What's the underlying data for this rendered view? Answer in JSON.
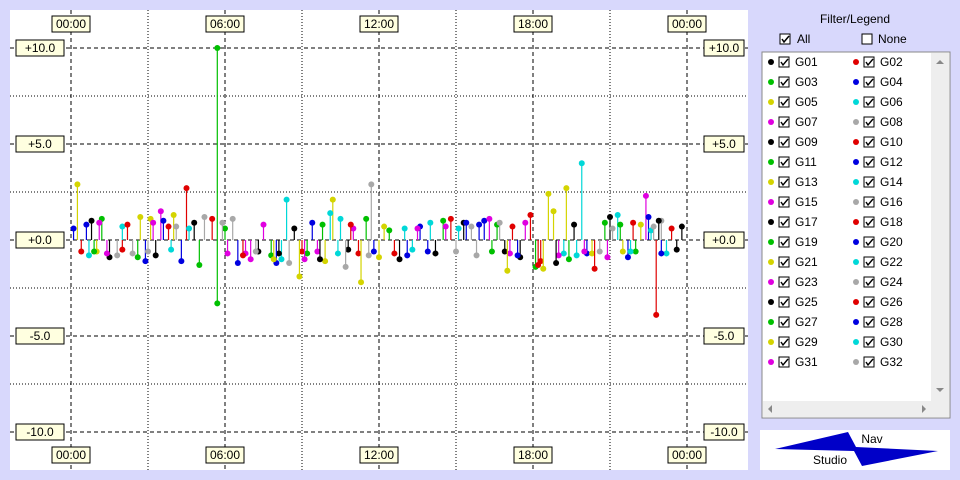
{
  "chart_data": {
    "type": "stem",
    "xlim": [
      0,
      24
    ],
    "ylim": [
      -10,
      10
    ],
    "grid": true,
    "xticks": [
      {
        "value": 0,
        "label": "00:00"
      },
      {
        "value": 6,
        "label": "06:00"
      },
      {
        "value": 12,
        "label": "12:00"
      },
      {
        "value": 18,
        "label": "18:00"
      },
      {
        "value": 24,
        "label": "00:00"
      }
    ],
    "xminorticks": [
      3,
      9,
      15,
      21
    ],
    "yticks": [
      {
        "value": 10,
        "label": "+10.0"
      },
      {
        "value": 5,
        "label": "+5.0"
      },
      {
        "value": 0,
        "label": "+0.0"
      },
      {
        "value": -5,
        "label": "-5.0"
      },
      {
        "value": -10,
        "label": "-10.0"
      }
    ],
    "yminorticks": [
      7.5,
      2.5,
      -2.5,
      -7.5
    ],
    "series": [
      {
        "name": "G01",
        "color": "#000000",
        "x": [
          0.8,
          7.3,
          10.8,
          17.5,
          21.0
        ],
        "values": [
          1.0,
          -0.6,
          -0.5,
          -0.9,
          1.2
        ]
      },
      {
        "name": "G02",
        "color": "#e00000",
        "x": [
          4.5,
          11.2,
          17.9,
          22.8,
          2.0
        ],
        "values": [
          2.7,
          -0.7,
          1.3,
          -3.9,
          -0.5
        ]
      },
      {
        "name": "G03",
        "color": "#00c000",
        "x": [
          5.7,
          5.7,
          9.8,
          16.6,
          22.0
        ],
        "values": [
          10.0,
          -3.3,
          0.8,
          0.8,
          -0.6
        ]
      },
      {
        "name": "G04",
        "color": "#0000e0",
        "x": [
          0.6,
          6.5,
          13.6,
          16.1,
          20.1
        ],
        "values": [
          0.8,
          -1.2,
          0.7,
          1.0,
          -0.7
        ]
      },
      {
        "name": "G05",
        "color": "#d4d400",
        "x": [
          0.25,
          3.1,
          10.2,
          18.6,
          21.5
        ],
        "values": [
          2.9,
          1.1,
          2.1,
          2.4,
          -0.6
        ]
      },
      {
        "name": "G06",
        "color": "#00d8d8",
        "x": [
          8.2,
          10.1,
          13.0,
          19.9,
          23.2
        ],
        "values": [
          -1.0,
          1.4,
          0.6,
          4.0,
          -0.7
        ]
      },
      {
        "name": "G07",
        "color": "#e000e0",
        "x": [
          3.2,
          7.0,
          9.6,
          17.1,
          22.4
        ],
        "values": [
          0.9,
          -1.0,
          -0.6,
          -0.7,
          2.3
        ]
      },
      {
        "name": "G08",
        "color": "#a8a8a8",
        "x": [
          2.4,
          6.3,
          11.7,
          15.0,
          23.0
        ],
        "values": [
          -0.7,
          1.1,
          2.9,
          -0.6,
          1.0
        ]
      },
      {
        "name": "G09",
        "color": "#000000",
        "x": [
          1.5,
          8.7,
          14.2,
          19.6,
          23.6
        ],
        "values": [
          -0.9,
          0.6,
          -0.7,
          0.8,
          -0.5
        ]
      },
      {
        "name": "G10",
        "color": "#e00000",
        "x": [
          3.8,
          9.0,
          14.8,
          18.3,
          21.9
        ],
        "values": [
          0.7,
          -0.6,
          1.1,
          -1.1,
          0.9
        ]
      },
      {
        "name": "G11",
        "color": "#00c000",
        "x": [
          1.2,
          7.8,
          12.4,
          18.1,
          20.8
        ],
        "values": [
          1.1,
          -0.8,
          0.5,
          -1.4,
          0.9
        ]
      },
      {
        "name": "G12",
        "color": "#0000e0",
        "x": [
          2.9,
          9.4,
          13.9,
          17.4,
          22.5
        ],
        "values": [
          -1.1,
          0.9,
          -0.6,
          -0.8,
          1.2
        ]
      },
      {
        "name": "G13",
        "color": "#d4d400",
        "x": [
          4.0,
          8.9,
          11.3,
          18.8,
          20.3
        ],
        "values": [
          1.3,
          -1.9,
          -2.2,
          1.5,
          -0.7
        ]
      },
      {
        "name": "G14",
        "color": "#00d8d8",
        "x": [
          2.0,
          10.5,
          13.3,
          19.2,
          21.3
        ],
        "values": [
          0.7,
          1.1,
          -0.5,
          -0.7,
          1.3
        ]
      },
      {
        "name": "G15",
        "color": "#e000e0",
        "x": [
          3.5,
          6.8,
          11.0,
          17.7,
          19.0
        ],
        "values": [
          1.5,
          -0.7,
          0.6,
          0.9,
          -0.8
        ]
      },
      {
        "name": "G16",
        "color": "#a8a8a8",
        "x": [
          1.8,
          5.2,
          8.5,
          15.6,
          20.6
        ],
        "values": [
          -0.8,
          1.2,
          -1.2,
          0.7,
          -0.6
        ]
      },
      {
        "name": "G17",
        "color": "#000000",
        "x": [
          4.8,
          8.1,
          12.8,
          16.9,
          22.9
        ],
        "values": [
          0.9,
          -0.7,
          -1.0,
          -0.6,
          1.0
        ]
      },
      {
        "name": "G18",
        "color": "#e00000",
        "x": [
          0.4,
          5.5,
          10.9,
          18.2,
          23.4
        ],
        "values": [
          -0.6,
          1.1,
          0.8,
          -1.3,
          0.6
        ]
      },
      {
        "name": "G19",
        "color": "#00c000",
        "x": [
          2.6,
          6.0,
          9.2,
          14.5,
          19.4
        ],
        "values": [
          -0.9,
          0.6,
          -0.7,
          1.0,
          -1.0
        ]
      },
      {
        "name": "G20",
        "color": "#0000e0",
        "x": [
          0.1,
          4.3,
          11.8,
          15.9,
          21.7
        ],
        "values": [
          0.6,
          -1.1,
          -0.6,
          0.8,
          -0.9
        ]
      },
      {
        "name": "G21",
        "color": "#d4d400",
        "x": [
          1.0,
          9.9,
          12.2,
          18.4,
          22.2
        ],
        "values": [
          -0.6,
          -1.1,
          0.7,
          -1.5,
          0.8
        ]
      },
      {
        "name": "G22",
        "color": "#00d8d8",
        "x": [
          3.9,
          8.4,
          14.0,
          19.7,
          22.6
        ],
        "values": [
          -0.5,
          2.1,
          0.9,
          -0.8,
          0.5
        ]
      },
      {
        "name": "G23",
        "color": "#e000e0",
        "x": [
          1.4,
          7.5,
          13.5,
          16.3,
          20.0
        ],
        "values": [
          -0.7,
          0.8,
          0.6,
          1.1,
          -0.6
        ]
      },
      {
        "name": "G24",
        "color": "#a8a8a8",
        "x": [
          4.1,
          7.2,
          10.7,
          16.7,
          21.1
        ],
        "values": [
          0.7,
          -0.6,
          -1.4,
          0.9,
          0.6
        ]
      },
      {
        "name": "G25",
        "color": "#000000",
        "x": [
          3.3,
          9.7,
          15.3,
          18.9,
          23.8
        ],
        "values": [
          -0.8,
          -1.0,
          0.9,
          -1.2,
          0.7
        ]
      },
      {
        "name": "G26",
        "color": "#e00000",
        "x": [
          2.2,
          6.7,
          12.6,
          17.2,
          20.4
        ],
        "values": [
          0.8,
          -0.8,
          -0.7,
          0.7,
          -1.5
        ]
      },
      {
        "name": "G27",
        "color": "#00c000",
        "x": [
          0.9,
          5.0,
          11.5,
          16.4,
          21.4
        ],
        "values": [
          -0.6,
          -1.3,
          1.1,
          -0.6,
          0.8
        ]
      },
      {
        "name": "G28",
        "color": "#0000e0",
        "x": [
          3.6,
          8.0,
          13.1,
          15.4,
          23.0
        ],
        "values": [
          1.0,
          -1.2,
          -0.8,
          0.9,
          -0.7
        ]
      },
      {
        "name": "G29",
        "color": "#d4d400",
        "x": [
          2.7,
          7.9,
          12.0,
          17.0,
          19.3
        ],
        "values": [
          1.2,
          -1.0,
          -0.9,
          -1.6,
          2.7
        ]
      },
      {
        "name": "G30",
        "color": "#00d8d8",
        "x": [
          0.7,
          4.6,
          10.4,
          15.1,
          21.8
        ],
        "values": [
          -0.8,
          0.6,
          -0.7,
          0.6,
          -0.6
        ]
      },
      {
        "name": "G31",
        "color": "#e000e0",
        "x": [
          1.1,
          6.1,
          9.1,
          14.6,
          20.9
        ],
        "values": [
          0.9,
          -0.7,
          -1.0,
          0.7,
          -0.9
        ]
      },
      {
        "name": "G32",
        "color": "#a8a8a8",
        "x": [
          3.0,
          5.9,
          11.6,
          15.8,
          22.7
        ],
        "values": [
          -0.6,
          0.9,
          -0.8,
          -0.8,
          0.7
        ]
      }
    ]
  },
  "filter_panel": {
    "title": "Filter/Legend",
    "all": "All",
    "none": "None"
  },
  "logo": {
    "top": "Nav",
    "bottom": "Studio"
  }
}
